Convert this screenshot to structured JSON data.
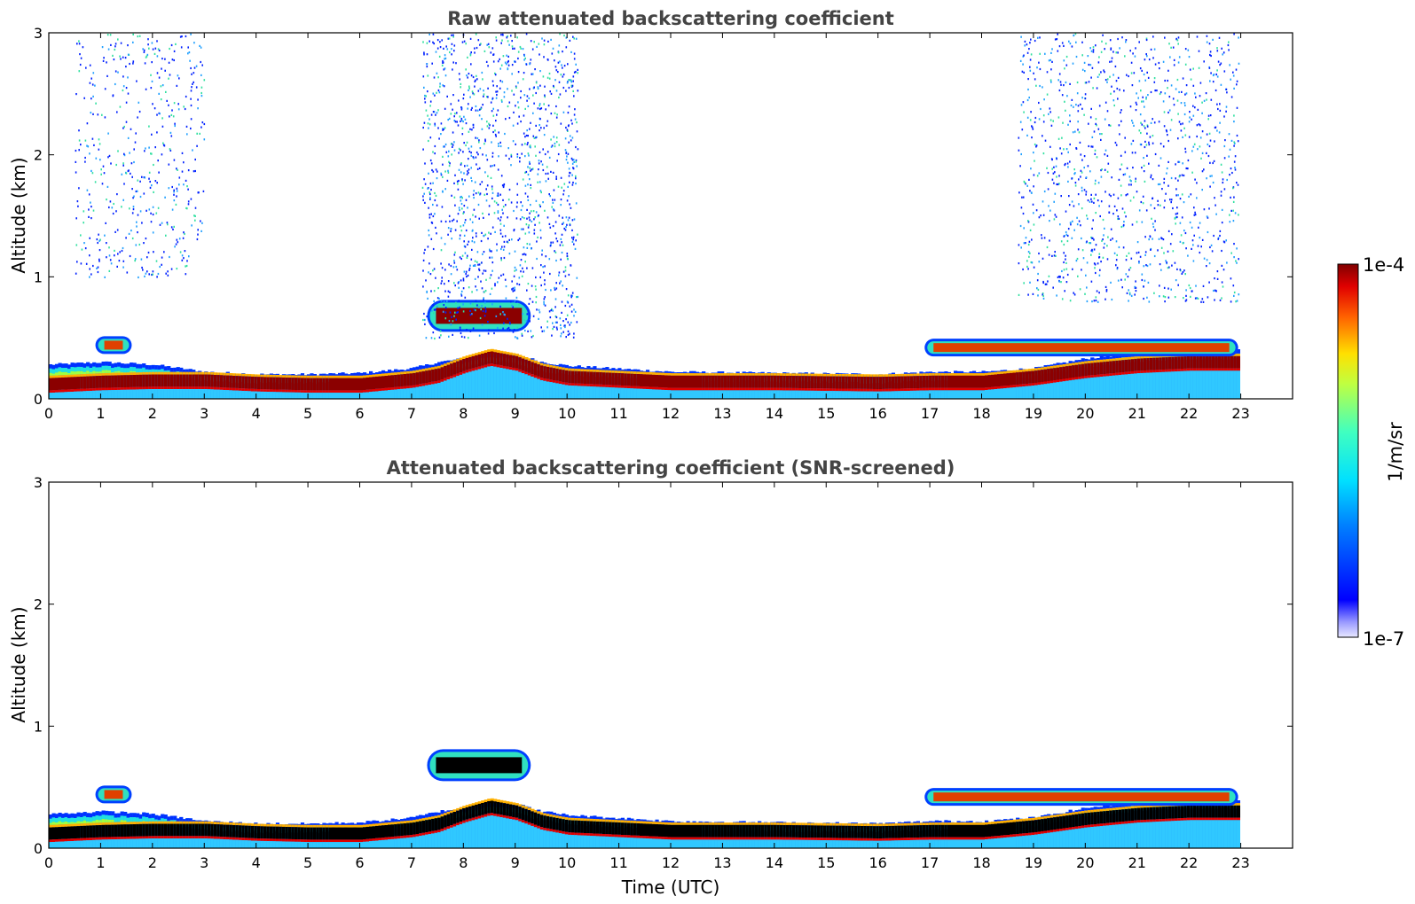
{
  "chart_data": [
    {
      "type": "heatmap",
      "title": "Raw attenuated backscattering coefficient",
      "xlabel": "",
      "ylabel": "Altitude (km)",
      "xlim": [
        0,
        24
      ],
      "ylim": [
        0,
        3
      ],
      "xticks": [
        "0",
        "1",
        "2",
        "3",
        "4",
        "5",
        "6",
        "7",
        "8",
        "9",
        "10",
        "11",
        "12",
        "13",
        "14",
        "15",
        "16",
        "17",
        "18",
        "19",
        "20",
        "21",
        "22",
        "23"
      ],
      "yticks": [
        "0",
        "1",
        "2",
        "3"
      ],
      "data_end_hour": 22.95,
      "features": [
        {
          "kind": "boundary_layer",
          "t": [
            0,
            1,
            2,
            3,
            4,
            5,
            6,
            7,
            7.5,
            8,
            8.5,
            9,
            9.5,
            10,
            12,
            14,
            16,
            17,
            18,
            19,
            20,
            21,
            22,
            22.95
          ],
          "top_km": [
            0.28,
            0.3,
            0.28,
            0.22,
            0.2,
            0.2,
            0.21,
            0.25,
            0.3,
            0.33,
            0.38,
            0.36,
            0.3,
            0.27,
            0.22,
            0.21,
            0.2,
            0.22,
            0.22,
            0.25,
            0.33,
            0.38,
            0.4,
            0.4
          ],
          "core_km": [
            0.12,
            0.14,
            0.15,
            0.15,
            0.13,
            0.12,
            0.12,
            0.16,
            0.2,
            0.28,
            0.34,
            0.3,
            0.22,
            0.18,
            0.14,
            0.14,
            0.13,
            0.14,
            0.14,
            0.18,
            0.24,
            0.28,
            0.3,
            0.3
          ]
        },
        {
          "kind": "cloud",
          "t_start": 7.3,
          "t_end": 9.3,
          "alt_km": 0.68
        },
        {
          "kind": "aerosol_layer",
          "t_start": 0.9,
          "t_end": 1.6,
          "alt_km": 0.44
        },
        {
          "kind": "aerosol_layer",
          "t_start": 16.9,
          "t_end": 22.95,
          "alt_km": 0.42
        }
      ],
      "noise_regions": [
        {
          "t_start": 0.5,
          "t_end": 3.0,
          "alt_km": [
            1.0,
            3.0
          ],
          "density": 0.35
        },
        {
          "t_start": 7.2,
          "t_end": 10.2,
          "alt_km": [
            0.5,
            3.0
          ],
          "density": 1.0
        },
        {
          "t_start": 18.7,
          "t_end": 22.95,
          "alt_km": [
            0.8,
            3.0
          ],
          "density": 0.85
        }
      ]
    },
    {
      "type": "heatmap",
      "title": "Attenuated backscattering coefficient (SNR-screened)",
      "xlabel": "Time (UTC)",
      "ylabel": "Altitude (km)",
      "xlim": [
        0,
        24
      ],
      "ylim": [
        0,
        3
      ],
      "xticks": [
        "0",
        "1",
        "2",
        "3",
        "4",
        "5",
        "6",
        "7",
        "8",
        "9",
        "10",
        "11",
        "12",
        "13",
        "14",
        "15",
        "16",
        "17",
        "18",
        "19",
        "20",
        "21",
        "22",
        "23"
      ],
      "yticks": [
        "0",
        "1",
        "2",
        "3"
      ],
      "data_end_hour": 22.95,
      "saturated_color": "#000000"
    }
  ],
  "colorbar": {
    "label": "1/m/sr",
    "max_label": "1e-4",
    "min_label": "1e-7",
    "colormap": "jet",
    "low_end_colors": [
      "#e6e6ff",
      "#c8c8ff",
      "#a0a0ff",
      "#7878ff"
    ]
  }
}
